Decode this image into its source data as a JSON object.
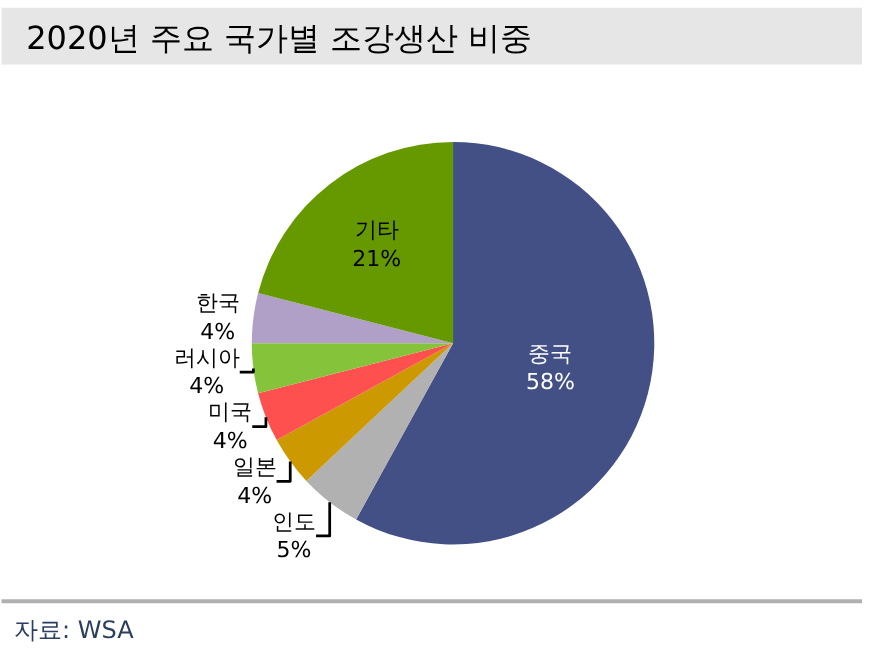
{
  "chart_data": {
    "type": "pie",
    "title": "2020년 주요 국가별 조강생산 비중",
    "categories": [
      "중국",
      "인도",
      "일본",
      "미국",
      "러시아",
      "한국",
      "기타"
    ],
    "values": [
      58,
      5,
      4,
      4,
      4,
      4,
      21
    ],
    "colors": [
      "#435086",
      "#b1b1b1",
      "#cc9900",
      "#ff5050",
      "#85c43a",
      "#b0a0c8",
      "#669900"
    ],
    "value_labels": [
      "58%",
      "5%",
      "4%",
      "4%",
      "4%",
      "4%",
      "21%"
    ],
    "annotations": [
      "자료: WSA"
    ],
    "legend": false
  }
}
